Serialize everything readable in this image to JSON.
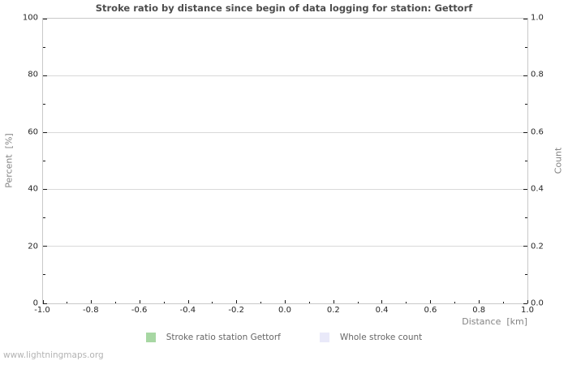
{
  "page": {
    "watermark": "www.lightningmaps.org"
  },
  "chart_data": {
    "type": "line",
    "title": "Stroke ratio by distance since begin of data logging for station: Gettorf",
    "xlabel": "Distance  [km]",
    "ylabel_left": "Percent  [%]",
    "ylabel_right": "Count",
    "x_axis": {
      "min": -1.0,
      "max": 1.0,
      "tick_labels": [
        "-1.0",
        "-0.8",
        "-0.6",
        "-0.4",
        "-0.2",
        "0.0",
        "0.2",
        "0.4",
        "0.6",
        "0.8",
        "1.0"
      ],
      "minor_ticks_between_majors": 1
    },
    "y_axis_left": {
      "min": 0,
      "max": 100,
      "tick_labels": [
        "0",
        "20",
        "40",
        "60",
        "80",
        "100"
      ],
      "minor_ticks_between_majors": 1
    },
    "y_axis_right": {
      "min": 0.0,
      "max": 1.0,
      "tick_labels": [
        "0.0",
        "0.2",
        "0.4",
        "0.6",
        "0.8",
        "1.0"
      ],
      "minor_ticks_between_majors": 1
    },
    "grid": "horizontal-only",
    "legend_position": "bottom-center",
    "series": [
      {
        "name": "Stroke ratio station Gettorf",
        "color": "#a7d7a3",
        "values": []
      },
      {
        "name": "Whole stroke count",
        "color": "#e9e9f9",
        "values": []
      }
    ]
  },
  "colors": {
    "title": "#4d4d4d",
    "tick_label": "#262626",
    "axis_title": "#838383",
    "grid": "#d9d9d9",
    "frame": "#c9c9c9",
    "tick_mark": "#1a1a1a",
    "legend_text": "#666666",
    "watermark": "#b3b3b3"
  }
}
